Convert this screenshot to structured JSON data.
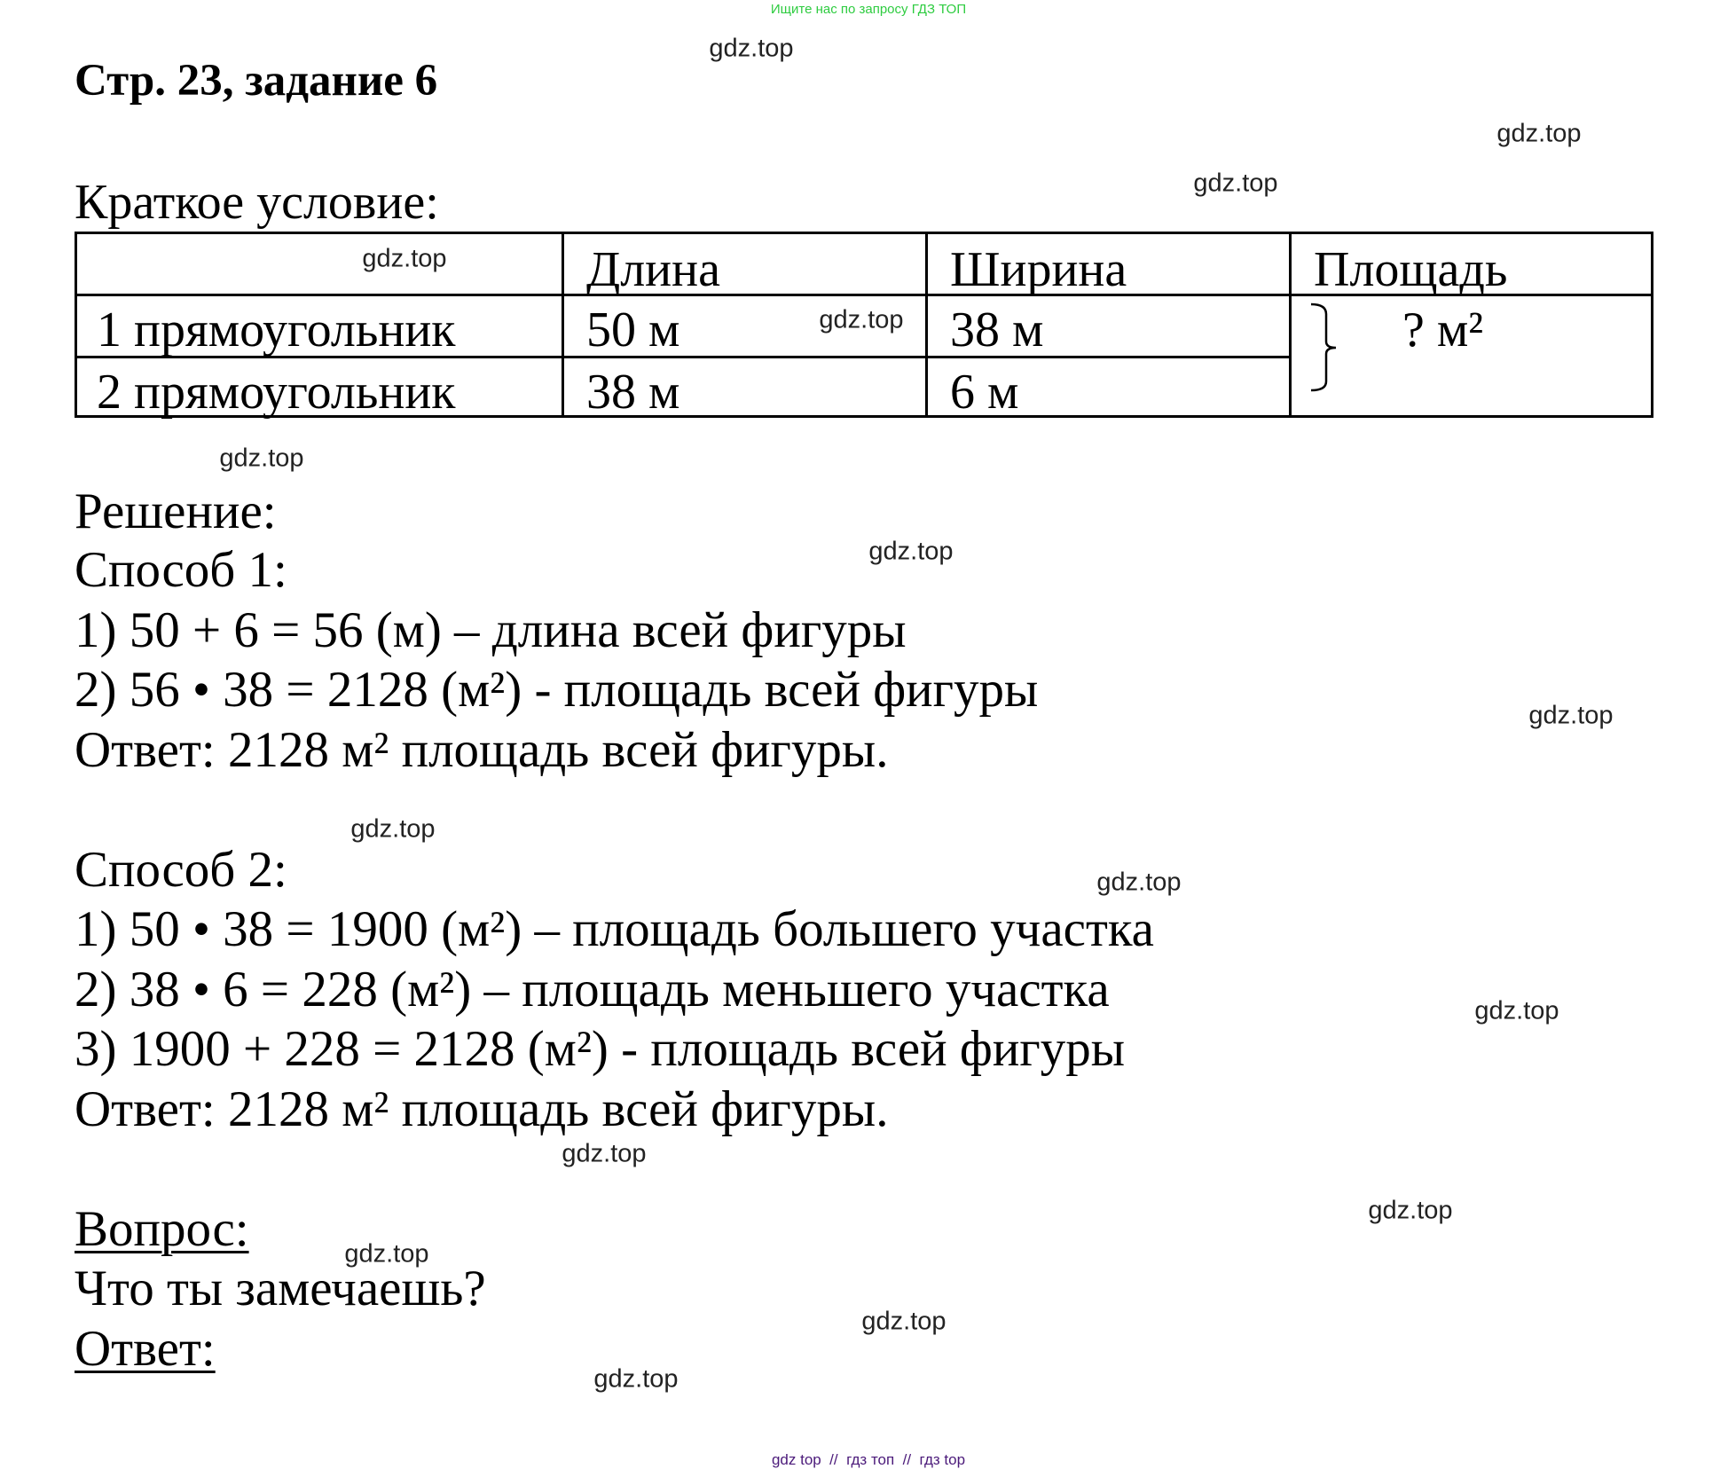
{
  "top_note": "Ищите нас по запросу ГДЗ ТОП",
  "title": "Стр. 23, задание 6",
  "condition": {
    "heading": "Краткое условие:",
    "columns": [
      "",
      "Длина",
      "Ширина",
      "Площадь"
    ],
    "rows": [
      {
        "name": "1 прямоугольник",
        "length": "50 м",
        "width": "38 м"
      },
      {
        "name": "2 прямоугольник",
        "length": "38 м",
        "width": "6 м"
      }
    ],
    "area": "? м²"
  },
  "solution": {
    "heading": "Решение:",
    "method1": {
      "heading": "Способ 1:",
      "steps": [
        "1) 50 + 6 = 56 (м) – длина всей фигуры",
        "2) 56 • 38 = 2128 (м²) - площадь всей фигуры"
      ],
      "answer": "Ответ: 2128 м² площадь всей фигуры."
    },
    "method2": {
      "heading": "Способ 2:",
      "steps": [
        "1) 50 • 38 = 1900 (м²) – площадь большего участка",
        "2) 38 • 6 = 228 (м²) – площадь меньшего участка",
        "3) 1900 + 228 = 2128 (м²) - площадь всей фигуры"
      ],
      "answer": "Ответ: 2128 м² площадь всей фигуры."
    }
  },
  "question": {
    "heading": "Вопрос:",
    "text": "Что ты замечаешь?",
    "answer_heading": "Ответ:"
  },
  "watermark": "gdz.top",
  "footer": "gdz top  //  гдз топ  //  гдз top",
  "colors": {
    "top_note": "#2ecc40",
    "footer": "#4b1a7a"
  }
}
